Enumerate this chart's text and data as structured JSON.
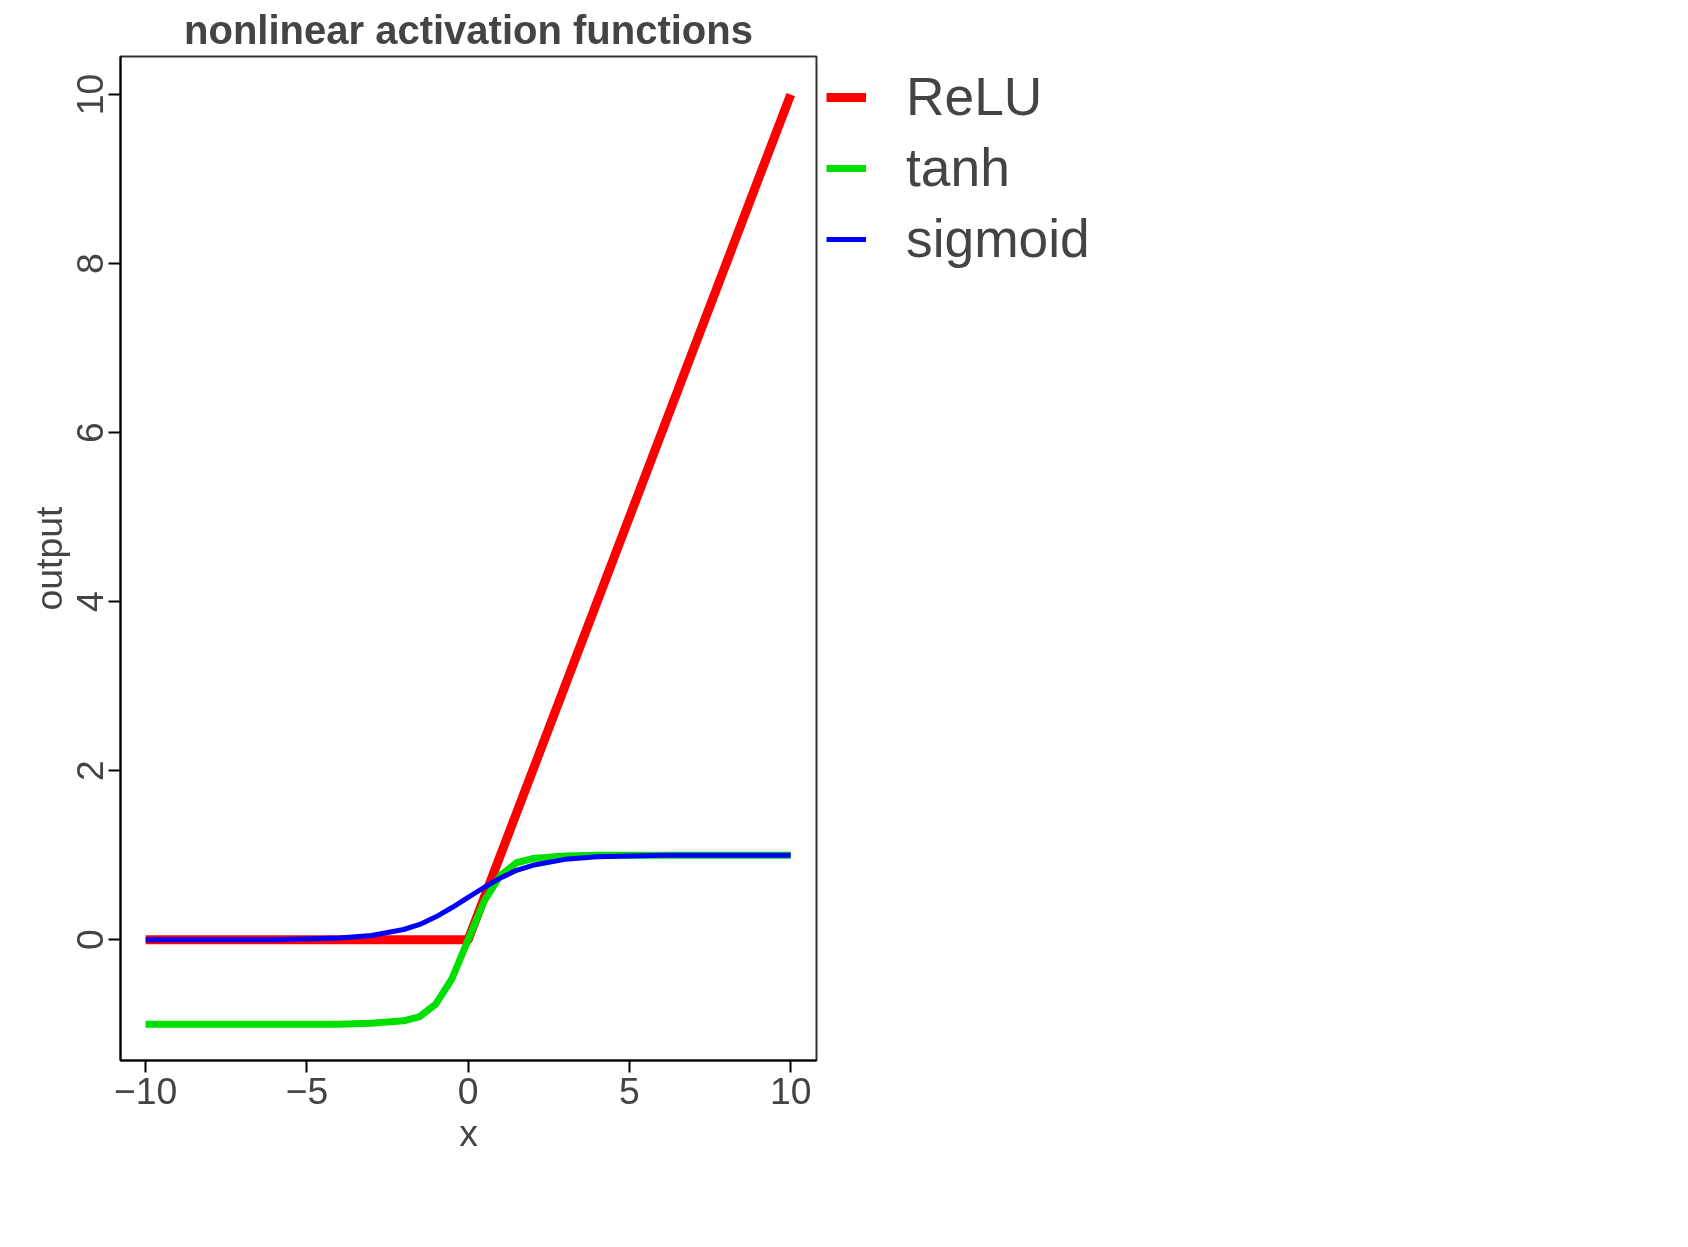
{
  "chart_data": {
    "type": "line",
    "title": "nonlinear activation functions",
    "xlabel": "x",
    "ylabel": "output",
    "xlim": [
      -10.78,
      10.8
    ],
    "ylim": [
      -1.43,
      10.45
    ],
    "xticks": [
      -10,
      -5,
      0,
      5,
      10
    ],
    "yticks": [
      0,
      2,
      4,
      6,
      8,
      10
    ],
    "grid": false,
    "legend": "right",
    "marker": "none",
    "line_style": "solid",
    "series": [
      {
        "name": "ReLU",
        "color": "#ff0000",
        "x": [
          -10,
          0,
          10
        ],
        "values": [
          0,
          0,
          10
        ]
      },
      {
        "name": "tanh",
        "color": "#00e000",
        "x": [
          -10,
          -4,
          -3,
          -2,
          -1.5,
          -1,
          -0.5,
          0,
          0.5,
          1,
          1.5,
          2,
          3,
          4,
          10
        ],
        "values": [
          -1,
          -1,
          -0.99,
          -0.96,
          -0.91,
          -0.76,
          -0.46,
          0,
          0.46,
          0.76,
          0.91,
          0.96,
          0.99,
          1,
          1
        ]
      },
      {
        "name": "sigmoid",
        "color": "#0000ff",
        "x": [
          -10,
          -6,
          -4,
          -3,
          -2,
          -1.5,
          -1,
          -0.5,
          0,
          0.5,
          1,
          1.5,
          2,
          3,
          4,
          6,
          10
        ],
        "values": [
          0,
          0,
          0.02,
          0.05,
          0.12,
          0.18,
          0.27,
          0.38,
          0.5,
          0.62,
          0.73,
          0.82,
          0.88,
          0.95,
          0.98,
          1,
          1
        ]
      }
    ]
  }
}
